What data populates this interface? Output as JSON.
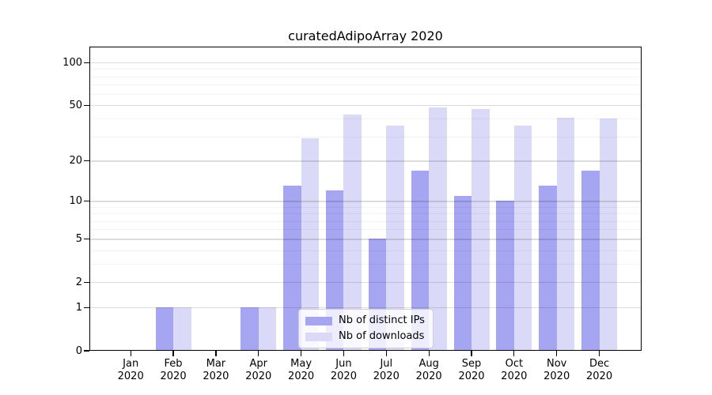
{
  "title": "curatedAdipoArray 2020",
  "chart_data": {
    "type": "bar",
    "title": "curatedAdipoArray 2020",
    "categories": [
      "Jan 2020",
      "Feb 2020",
      "Mar 2020",
      "Apr 2020",
      "May 2020",
      "Jun 2020",
      "Jul 2020",
      "Aug 2020",
      "Sep 2020",
      "Oct 2020",
      "Nov 2020",
      "Dec 2020"
    ],
    "series": [
      {
        "name": "Nb of distinct IPs",
        "color": "#a5a5f2",
        "values": [
          0,
          1,
          0,
          1,
          13,
          12,
          5,
          17,
          11,
          10,
          13,
          17
        ]
      },
      {
        "name": "Nb of downloads",
        "color": "#dadaf8",
        "values": [
          0,
          1,
          0,
          1,
          29,
          43,
          36,
          48,
          47,
          36,
          41,
          40
        ]
      }
    ],
    "xlabel": "",
    "ylabel": "",
    "yscale": "log10(1+y)",
    "ylim": [
      0,
      128
    ],
    "yticks": [
      0,
      1,
      2,
      5,
      10,
      20,
      50,
      100
    ],
    "yticks_minor": [
      3,
      4,
      6,
      7,
      8,
      9,
      30,
      40,
      60,
      70,
      80,
      90
    ],
    "grid": "horizontal, drawn over bars",
    "legend_position": "lower center inside plot"
  }
}
